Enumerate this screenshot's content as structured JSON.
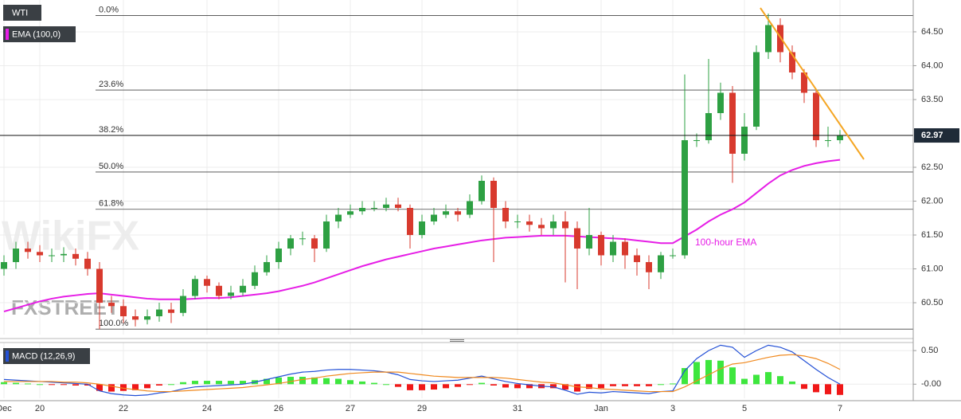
{
  "chart_data": {
    "type": "candlestick",
    "symbol": "WTI",
    "categories": [
      "Dec",
      null,
      null,
      "20",
      null,
      null,
      null,
      null,
      null,
      null,
      "22",
      null,
      null,
      null,
      null,
      null,
      null,
      "24",
      null,
      null,
      null,
      null,
      null,
      "26",
      null,
      null,
      null,
      null,
      null,
      "27",
      null,
      null,
      null,
      null,
      null,
      "29",
      null,
      null,
      null,
      null,
      null,
      null,
      null,
      "31",
      null,
      null,
      null,
      null,
      null,
      null,
      "Jan",
      null,
      null,
      null,
      null,
      null,
      "3",
      null,
      null,
      null,
      null,
      null,
      "5",
      null,
      null,
      null,
      null,
      null,
      null,
      null,
      "7"
    ],
    "open": [
      61.0,
      61.1,
      61.3,
      61.25,
      61.2,
      61.2,
      61.22,
      61.15,
      61.0,
      60.5,
      60.45,
      60.3,
      60.25,
      60.3,
      60.4,
      60.35,
      60.6,
      60.85,
      60.75,
      60.6,
      60.65,
      60.75,
      60.95,
      61.1,
      61.3,
      61.45,
      61.45,
      61.3,
      61.7,
      61.8,
      61.85,
      61.9,
      61.9,
      61.95,
      61.9,
      61.5,
      61.7,
      61.8,
      61.85,
      61.8,
      62.0,
      62.3,
      61.9,
      61.7,
      61.7,
      61.65,
      61.6,
      61.7,
      61.6,
      61.3,
      61.5,
      61.2,
      61.4,
      61.2,
      61.1,
      60.95,
      61.2,
      61.2,
      62.9,
      62.9,
      63.3,
      63.6,
      62.7,
      63.1,
      64.2,
      64.6,
      64.2,
      63.9,
      63.6,
      62.9,
      62.9
    ],
    "high": [
      61.2,
      61.4,
      61.4,
      61.35,
      61.3,
      61.32,
      61.3,
      61.25,
      61.1,
      60.6,
      60.55,
      60.4,
      60.4,
      60.5,
      60.5,
      60.7,
      60.9,
      60.9,
      60.8,
      60.75,
      60.85,
      61.05,
      61.2,
      61.4,
      61.5,
      61.55,
      61.5,
      61.8,
      61.9,
      61.95,
      62.0,
      62.0,
      62.05,
      62.05,
      61.95,
      61.8,
      61.9,
      61.95,
      61.9,
      62.1,
      62.38,
      62.35,
      62.0,
      61.8,
      61.8,
      61.75,
      61.8,
      61.85,
      61.7,
      61.9,
      61.55,
      61.5,
      61.45,
      61.3,
      61.2,
      61.25,
      61.3,
      63.87,
      63.0,
      64.1,
      63.75,
      63.7,
      63.3,
      64.3,
      64.77,
      64.7,
      64.3,
      63.95,
      63.65,
      63.1,
      63.05
    ],
    "low": [
      60.9,
      61.0,
      61.15,
      61.1,
      61.1,
      61.1,
      61.05,
      60.9,
      60.11,
      60.35,
      60.2,
      60.15,
      60.18,
      60.22,
      60.2,
      60.3,
      60.55,
      60.65,
      60.55,
      60.55,
      60.6,
      60.7,
      60.9,
      61.0,
      61.2,
      61.35,
      61.1,
      61.25,
      61.6,
      61.75,
      61.8,
      61.85,
      61.85,
      61.85,
      61.3,
      61.45,
      61.65,
      61.75,
      61.7,
      61.75,
      61.95,
      61.1,
      61.6,
      61.6,
      61.55,
      61.5,
      61.5,
      60.8,
      60.7,
      61.2,
      61.05,
      61.1,
      61.0,
      60.9,
      60.7,
      60.85,
      61.15,
      61.15,
      62.8,
      62.85,
      63.2,
      62.27,
      62.6,
      63.05,
      64.1,
      64.05,
      63.8,
      63.45,
      62.8,
      62.8,
      62.85
    ],
    "close": [
      61.1,
      61.3,
      61.25,
      61.2,
      61.2,
      61.22,
      61.15,
      61.0,
      60.5,
      60.45,
      60.3,
      60.25,
      60.3,
      60.4,
      60.35,
      60.6,
      60.85,
      60.75,
      60.6,
      60.65,
      60.75,
      60.95,
      61.1,
      61.3,
      61.45,
      61.45,
      61.3,
      61.7,
      61.8,
      61.85,
      61.9,
      61.9,
      61.95,
      61.9,
      61.5,
      61.7,
      61.8,
      61.85,
      61.8,
      62.0,
      62.3,
      61.9,
      61.7,
      61.7,
      61.65,
      61.6,
      61.7,
      61.6,
      61.3,
      61.5,
      61.2,
      61.4,
      61.2,
      61.1,
      60.95,
      61.2,
      61.2,
      62.9,
      62.9,
      63.3,
      63.6,
      62.7,
      63.1,
      64.2,
      64.6,
      64.2,
      63.9,
      63.6,
      62.9,
      62.9,
      62.97
    ],
    "up_color": "#2ea043",
    "down_color": "#d83a2e",
    "ema": {
      "name": "EMA (100,0)",
      "color": "#e61ee6",
      "annotation": "100-hour EMA",
      "values": [
        60.37,
        60.42,
        60.47,
        60.52,
        60.56,
        60.59,
        60.61,
        60.63,
        60.64,
        60.62,
        60.6,
        60.58,
        60.56,
        60.55,
        60.55,
        60.55,
        60.56,
        60.57,
        60.57,
        60.58,
        60.6,
        60.62,
        60.64,
        60.67,
        60.71,
        60.75,
        60.8,
        60.86,
        60.92,
        60.98,
        61.04,
        61.09,
        61.14,
        61.18,
        61.22,
        61.26,
        61.3,
        61.33,
        61.36,
        61.39,
        61.42,
        61.44,
        61.46,
        61.47,
        61.48,
        61.49,
        61.49,
        61.49,
        61.48,
        61.47,
        61.46,
        61.45,
        61.44,
        61.42,
        61.4,
        61.38,
        61.38,
        61.48,
        61.58,
        61.7,
        61.8,
        61.88,
        61.98,
        62.12,
        62.26,
        62.38,
        62.46,
        62.52,
        62.56,
        62.59,
        62.61
      ]
    },
    "fib_levels": [
      {
        "label": "0.0%",
        "value": 64.74
      },
      {
        "label": "23.6%",
        "value": 63.64
      },
      {
        "label": "38.2%",
        "value": 62.97
      },
      {
        "label": "50.0%",
        "value": 62.43
      },
      {
        "label": "61.8%",
        "value": 61.88
      },
      {
        "label": "100.0%",
        "value": 60.11
      }
    ],
    "last_price": 62.97,
    "ylim": [
      60.03,
      64.97
    ],
    "yticks": [
      {
        "value": 60.5,
        "label": "60.50"
      },
      {
        "value": 61,
        "label": "61.00"
      },
      {
        "value": 61.5,
        "label": "61.50"
      },
      {
        "value": 62,
        "label": "62.00"
      },
      {
        "value": 62.5,
        "label": "62.50"
      },
      {
        "value": 63.5,
        "label": "63.50"
      },
      {
        "value": 64,
        "label": "64.00"
      },
      {
        "value": 64.5,
        "label": "64.50"
      }
    ],
    "grid": true,
    "watermarks": [
      "FXSTREET",
      "WikiFX"
    ],
    "macd": {
      "type": "macd",
      "name": "MACD (12,26,9)",
      "ylim": [
        -0.21,
        0.62
      ],
      "yticks": [
        {
          "value": 0,
          "label": "-0.00"
        },
        {
          "value": 0.5,
          "label": "0.50"
        }
      ],
      "macd_line": {
        "color": "#2451d6",
        "values": [
          0.07,
          0.06,
          0.05,
          0.04,
          0.03,
          0.02,
          0.01,
          0.0,
          -0.1,
          -0.14,
          -0.16,
          -0.17,
          -0.16,
          -0.13,
          -0.11,
          -0.07,
          -0.04,
          -0.03,
          -0.02,
          -0.01,
          0.0,
          0.03,
          0.07,
          0.11,
          0.15,
          0.18,
          0.19,
          0.21,
          0.22,
          0.22,
          0.21,
          0.2,
          0.18,
          0.14,
          0.07,
          0.05,
          0.04,
          0.05,
          0.06,
          0.09,
          0.12,
          0.08,
          0.04,
          0.01,
          -0.01,
          -0.03,
          -0.04,
          -0.09,
          -0.15,
          -0.12,
          -0.13,
          -0.11,
          -0.12,
          -0.13,
          -0.14,
          -0.11,
          -0.1,
          0.2,
          0.38,
          0.5,
          0.58,
          0.55,
          0.4,
          0.5,
          0.58,
          0.55,
          0.48,
          0.35,
          0.22,
          0.1,
          0.0
        ]
      },
      "signal_line": {
        "color": "#f0891e",
        "values": [
          0.04,
          0.04,
          0.04,
          0.04,
          0.04,
          0.03,
          0.03,
          0.02,
          0.0,
          -0.03,
          -0.06,
          -0.08,
          -0.1,
          -0.11,
          -0.11,
          -0.1,
          -0.09,
          -0.08,
          -0.07,
          -0.06,
          -0.05,
          -0.03,
          -0.01,
          0.01,
          0.04,
          0.07,
          0.09,
          0.12,
          0.14,
          0.16,
          0.17,
          0.18,
          0.18,
          0.18,
          0.16,
          0.14,
          0.12,
          0.11,
          0.1,
          0.1,
          0.1,
          0.1,
          0.09,
          0.07,
          0.05,
          0.03,
          0.02,
          -0.01,
          -0.04,
          -0.05,
          -0.07,
          -0.08,
          -0.09,
          -0.1,
          -0.11,
          -0.11,
          -0.11,
          -0.04,
          0.05,
          0.14,
          0.23,
          0.3,
          0.32,
          0.36,
          0.4,
          0.43,
          0.44,
          0.42,
          0.38,
          0.31,
          0.22
        ]
      },
      "histogram": {
        "up_color": "#3ee63e",
        "down_color": "#f01818",
        "values": [
          0.03,
          0.02,
          0.01,
          0.0,
          -0.01,
          -0.01,
          -0.02,
          -0.02,
          -0.1,
          -0.11,
          -0.1,
          -0.09,
          -0.06,
          -0.02,
          0.0,
          0.03,
          0.05,
          0.05,
          0.05,
          0.05,
          0.05,
          0.06,
          0.08,
          0.1,
          0.11,
          0.11,
          0.1,
          0.09,
          0.08,
          0.06,
          0.04,
          0.02,
          0.0,
          -0.04,
          -0.09,
          -0.09,
          -0.08,
          -0.06,
          -0.04,
          -0.01,
          0.02,
          -0.02,
          -0.05,
          -0.06,
          -0.06,
          -0.06,
          -0.06,
          -0.08,
          -0.11,
          -0.07,
          -0.06,
          -0.03,
          -0.03,
          -0.03,
          -0.03,
          0.0,
          0.01,
          0.24,
          0.33,
          0.36,
          0.35,
          0.25,
          0.08,
          0.14,
          0.18,
          0.12,
          0.04,
          -0.07,
          -0.12,
          -0.15,
          -0.16
        ]
      }
    }
  }
}
